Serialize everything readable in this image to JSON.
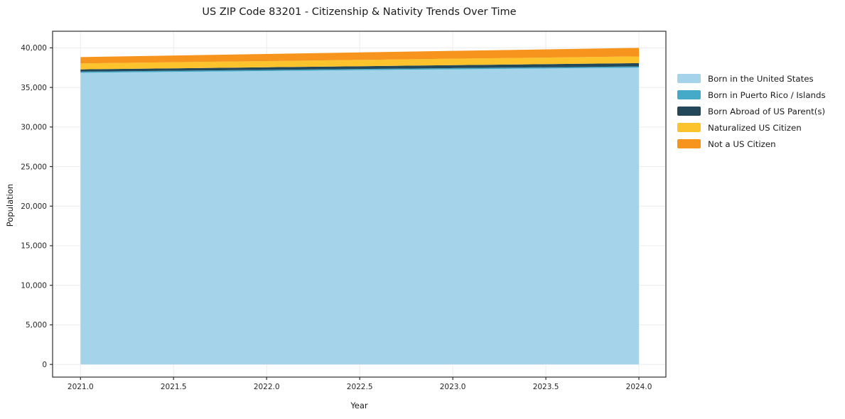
{
  "chart_data": {
    "type": "area",
    "stacked": true,
    "title": "US ZIP Code 83201 - Citizenship & Nativity Trends Over Time",
    "xlabel": "Year",
    "ylabel": "Population",
    "x": [
      2021,
      2022,
      2023,
      2024
    ],
    "series": [
      {
        "name": "Born in the United States",
        "color": "#a4d3ea",
        "values": [
          36850,
          37070,
          37290,
          37500
        ]
      },
      {
        "name": "Born in Puerto Rico / Islands",
        "color": "#45a9c8",
        "values": [
          150,
          150,
          150,
          150
        ]
      },
      {
        "name": "Born Abroad of US Parent(s)",
        "color": "#23485a",
        "values": [
          280,
          330,
          375,
          420
        ]
      },
      {
        "name": "Naturalized US Citizen",
        "color": "#fcc32d",
        "values": [
          750,
          780,
          815,
          850
        ]
      },
      {
        "name": "Not a US Citizen",
        "color": "#f7941e",
        "values": [
          810,
          900,
          990,
          1080
        ]
      }
    ],
    "xlim": [
      2020.85,
      2024.145
    ],
    "ylim": [
      -1600,
      42100
    ],
    "xticks": [
      2021.0,
      2021.5,
      2022.0,
      2022.5,
      2023.0,
      2023.5,
      2024.0
    ],
    "xtick_labels": [
      "2021.0",
      "2021.5",
      "2022.0",
      "2022.5",
      "2023.0",
      "2023.5",
      "2024.0"
    ],
    "yticks": [
      0,
      5000,
      10000,
      15000,
      20000,
      25000,
      30000,
      35000,
      40000
    ],
    "ytick_labels": [
      "0",
      "5,000",
      "10,000",
      "15,000",
      "20,000",
      "25,000",
      "30,000",
      "35,000",
      "40,000"
    ],
    "grid": true,
    "grid_color": "#ececec",
    "spine_color": "#2e2e2e",
    "text_color": "#262626",
    "legend_position": "right",
    "legend": [
      "Born in the United States",
      "Born in Puerto Rico / Islands",
      "Born Abroad of US Parent(s)",
      "Naturalized US Citizen",
      "Not a US Citizen"
    ]
  }
}
